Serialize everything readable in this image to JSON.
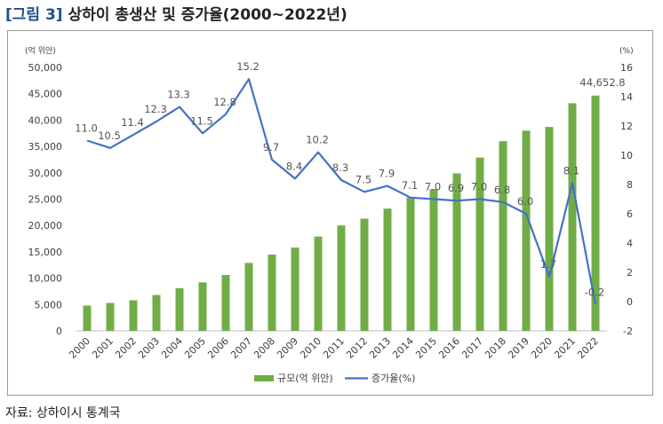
{
  "figure": {
    "label": "[그림 3]",
    "title": "상하이 총생산 및 증가율(2000~2022년)",
    "source": "자료: 상하이시 통계국"
  },
  "chart_data": {
    "type": "bar",
    "categories": [
      "2000",
      "2001",
      "2002",
      "2003",
      "2004",
      "2005",
      "2006",
      "2007",
      "2008",
      "2009",
      "2010",
      "2011",
      "2012",
      "2013",
      "2014",
      "2015",
      "2016",
      "2017",
      "2018",
      "2019",
      "2020",
      "2021",
      "2022"
    ],
    "series": [
      {
        "name": "규모(억 위안)",
        "type": "bar",
        "axis": "left",
        "color": "#70ad47",
        "values": [
          4800,
          5300,
          5800,
          6800,
          8100,
          9200,
          10600,
          12900,
          14500,
          15800,
          17900,
          20000,
          21300,
          23200,
          25300,
          26900,
          29900,
          32900,
          36000,
          38000,
          38700,
          43200,
          44652.8
        ]
      },
      {
        "name": "증가율(%)",
        "type": "line",
        "axis": "right",
        "color": "#4472c4",
        "values": [
          11.0,
          10.5,
          11.4,
          12.3,
          13.3,
          11.5,
          12.8,
          15.2,
          9.7,
          8.4,
          10.2,
          8.3,
          7.5,
          7.9,
          7.1,
          7.0,
          6.9,
          7.0,
          6.8,
          6.0,
          1.7,
          8.1,
          -0.2
        ],
        "labels": [
          "11.0",
          "10.5",
          "11.4",
          "12.3",
          "13.3",
          "11.5",
          "12.8",
          "15.2",
          "9.7",
          "8.4",
          "10.2",
          "8.3",
          "7.5",
          "7.9",
          "7.1",
          "7.0",
          "6.9",
          "7.0",
          "6.8",
          "6.0",
          "1.7",
          "8.1",
          "-0.2"
        ]
      }
    ],
    "bar_labels": [
      {
        "index": 22,
        "text": "44,652.8"
      }
    ],
    "left_axis": {
      "unit": "(억 위안)",
      "ylim": [
        0,
        50000
      ],
      "ticks": [
        0,
        5000,
        10000,
        15000,
        20000,
        25000,
        30000,
        35000,
        40000,
        45000,
        50000
      ],
      "tick_labels": [
        "0",
        "5,000",
        "10,000",
        "15,000",
        "20,000",
        "25,000",
        "30,000",
        "35,000",
        "40,000",
        "45,000",
        "50,000"
      ]
    },
    "right_axis": {
      "unit": "(%)",
      "ylim": [
        -2,
        16
      ],
      "ticks": [
        -2,
        0,
        2,
        4,
        6,
        8,
        10,
        12,
        14,
        16
      ],
      "tick_labels": [
        "-2",
        "0",
        "2",
        "4",
        "6",
        "8",
        "10",
        "12",
        "14",
        "16"
      ]
    },
    "grid": false,
    "legend": "bottom"
  }
}
